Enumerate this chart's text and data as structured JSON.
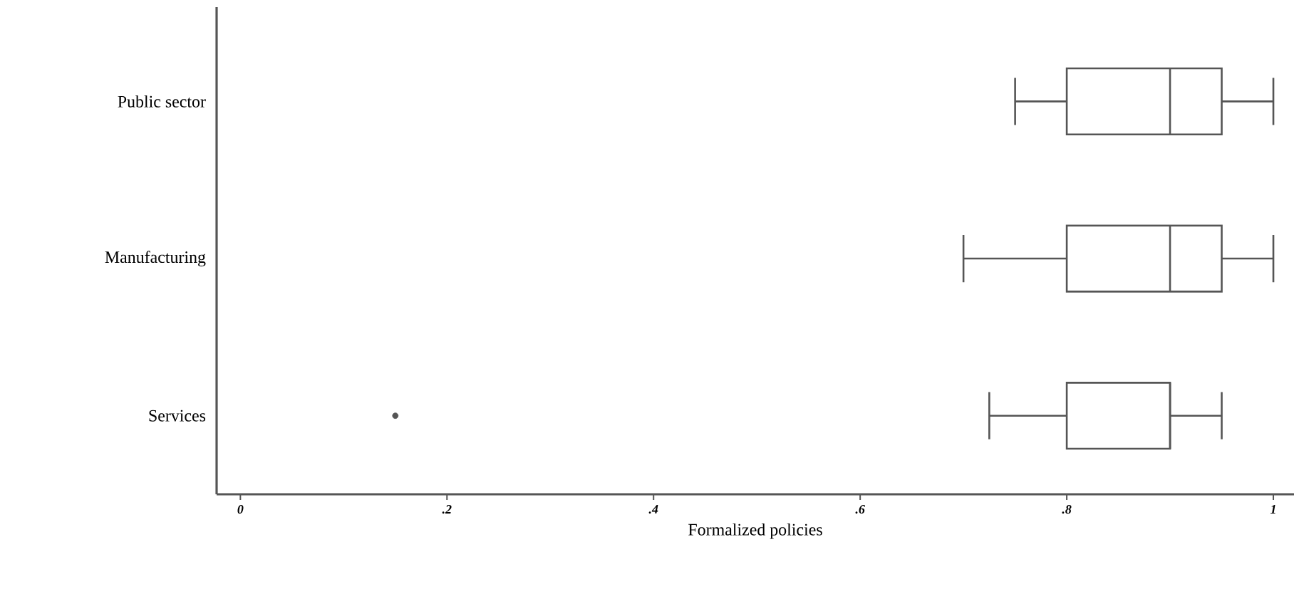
{
  "chart_data": {
    "type": "box",
    "orientation": "horizontal",
    "xlabel": "Formalized policies",
    "categories": [
      "Public sector",
      "Manufacturing",
      "Services"
    ],
    "boxes": [
      {
        "low": 0.75,
        "q1": 0.8,
        "median": 0.9,
        "q3": 0.95,
        "high": 1.0
      },
      {
        "low": 0.7,
        "q1": 0.8,
        "median": 0.9,
        "q3": 0.95,
        "high": 1.0
      },
      {
        "low": 0.725,
        "q1": 0.8,
        "median": 0.9,
        "q3": 0.9,
        "high": 0.95,
        "outliers": [
          0.15
        ]
      }
    ],
    "color": "#555555",
    "xlim": [
      -0.023,
      1.02
    ],
    "xticks": [
      {
        "value": 0,
        "label": "0"
      },
      {
        "value": 0.2,
        "label": ".2"
      },
      {
        "value": 0.4,
        "label": ".4"
      },
      {
        "value": 0.6,
        "label": ".6"
      },
      {
        "value": 0.8,
        "label": ".8"
      },
      {
        "value": 1,
        "label": "1"
      }
    ]
  }
}
